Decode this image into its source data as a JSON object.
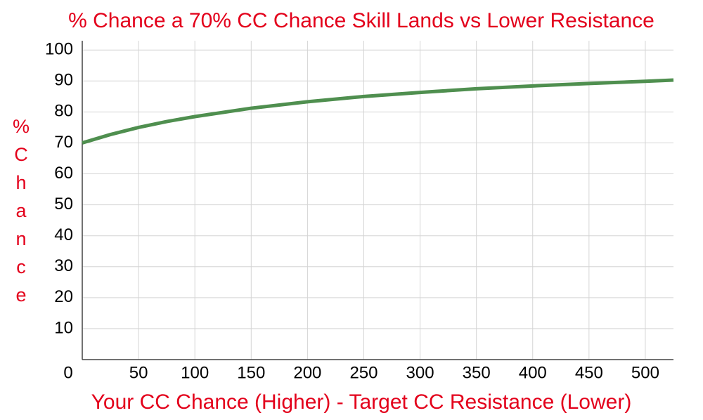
{
  "chart_data": {
    "type": "line",
    "title": "% Chance a 70% CC Chance Skill Lands vs Lower Resistance",
    "x_label": "Your CC Chance (Higher) - Target CC Resistance (Lower)",
    "y_label": "% Chance",
    "x": [
      0,
      25,
      50,
      75,
      100,
      150,
      200,
      250,
      300,
      350,
      400,
      450,
      500,
      525
    ],
    "series": [
      {
        "color": "#4f8f4f",
        "values": [
          70,
          72.7,
          75,
          76.9,
          78.5,
          81.2,
          83.3,
          85,
          86.3,
          87.5,
          88.4,
          89.2,
          89.9,
          90.3
        ]
      }
    ],
    "xlim": [
      0,
      525
    ],
    "xticks": [
      0,
      50,
      100,
      150,
      200,
      250,
      300,
      350,
      400,
      450,
      500
    ],
    "ylim": [
      0,
      103
    ],
    "yticks": [
      10,
      20,
      30,
      40,
      50,
      60,
      70,
      80,
      90,
      100
    ],
    "grid": true
  }
}
